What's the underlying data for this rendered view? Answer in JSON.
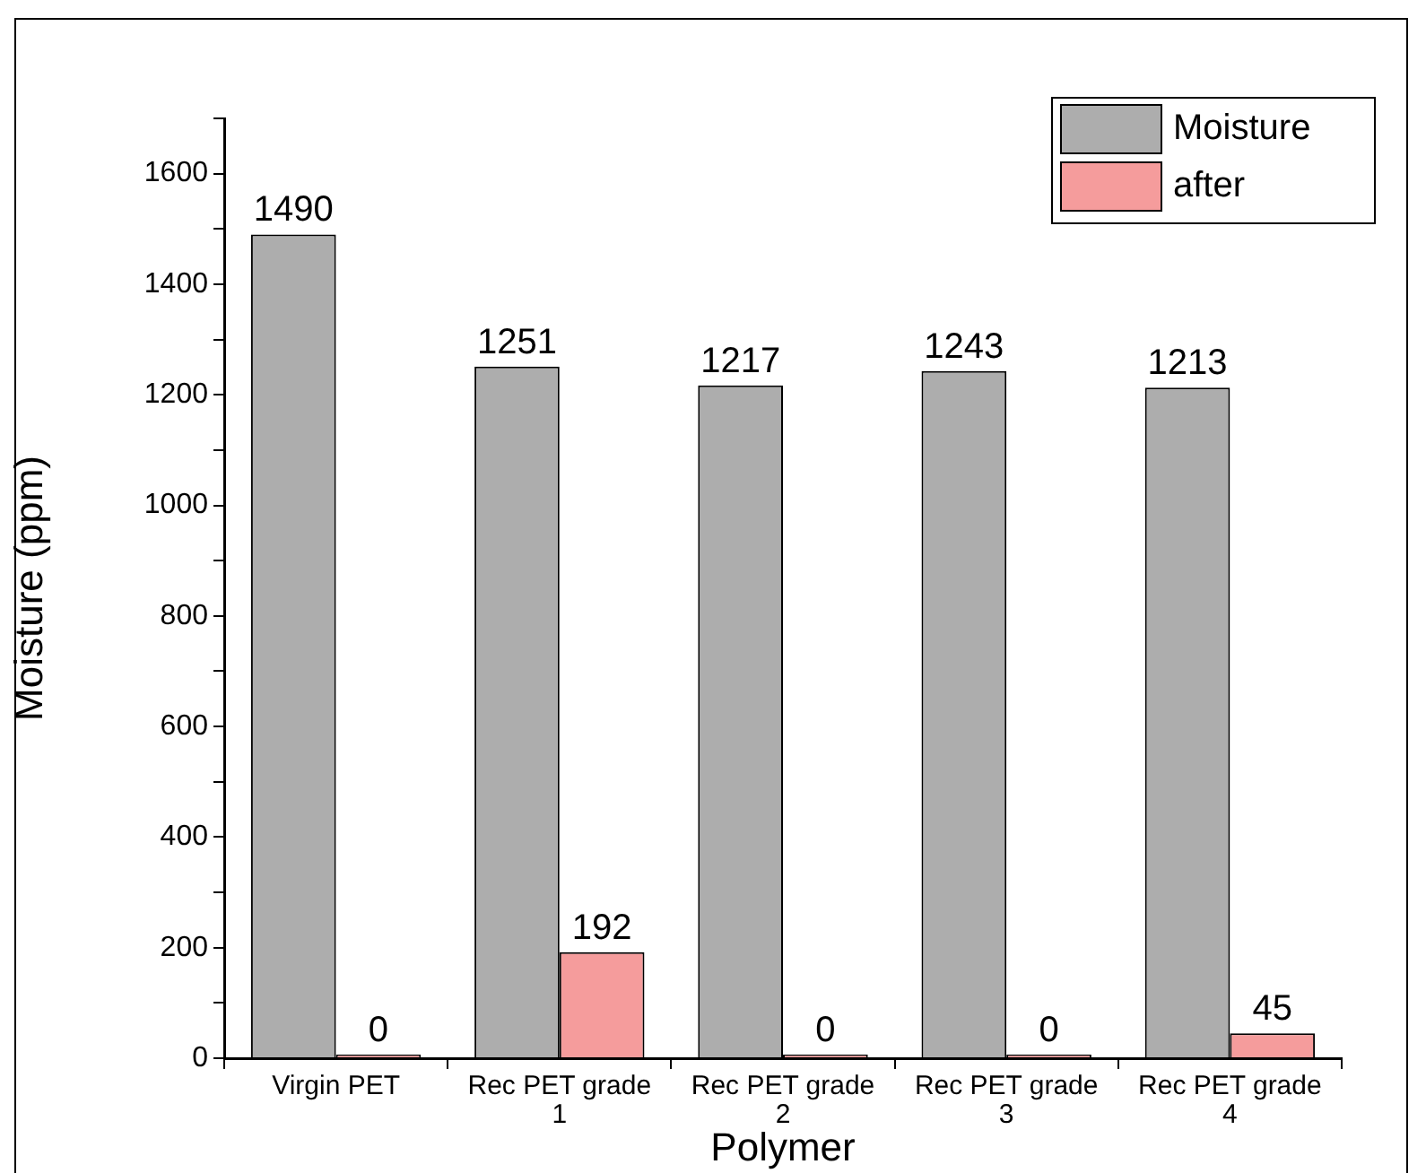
{
  "chart_data": {
    "type": "bar",
    "xlabel": "Polymer",
    "ylabel": "Moisture (ppm)",
    "categories": [
      "Virgin PET",
      "Rec PET grade 1",
      "Rec PET grade 2",
      "Rec PET grade 3",
      "Rec PET grade 4"
    ],
    "series": [
      {
        "name": "Moisture",
        "color": "#adadad",
        "values": [
          1490,
          1251,
          1217,
          1243,
          1213
        ]
      },
      {
        "name": "after",
        "color": "#f59c9c",
        "values": [
          0,
          192,
          0,
          0,
          45
        ]
      }
    ],
    "ylim": [
      0,
      1700
    ],
    "yticks": [
      0,
      {
        "value": 100,
        "label": null
      },
      200,
      {
        "value": 300,
        "label": null
      },
      400,
      {
        "value": 500,
        "label": null
      },
      600,
      {
        "value": 700,
        "label": null
      },
      800,
      {
        "value": 900,
        "label": null
      },
      1000,
      {
        "value": 1100,
        "label": null
      },
      1200,
      {
        "value": 1300,
        "label": null
      },
      1400,
      {
        "value": 1500,
        "label": null
      },
      1600,
      {
        "value": 1700,
        "label": null
      }
    ],
    "data_labels": true,
    "grid": false,
    "legend": "top right"
  }
}
